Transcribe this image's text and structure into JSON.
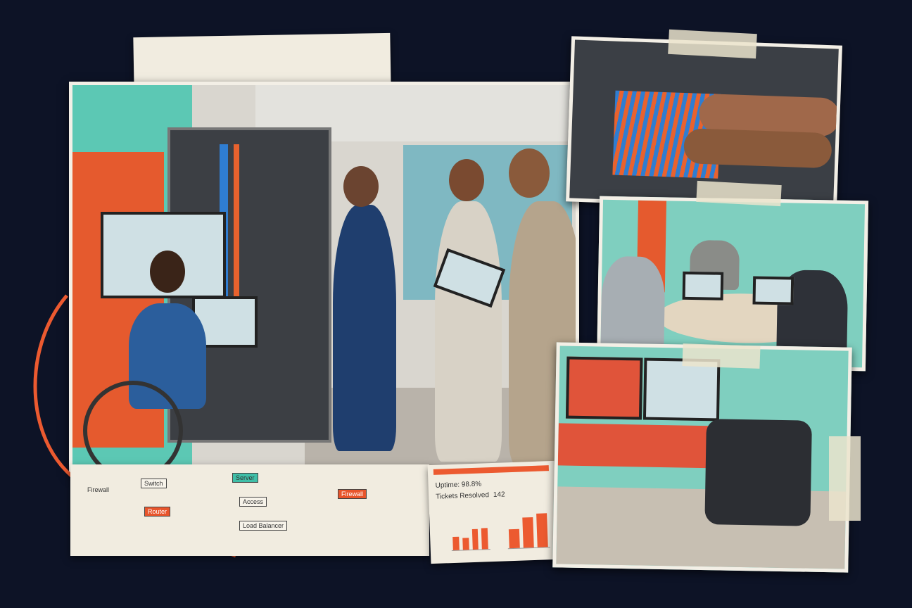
{
  "diagram": {
    "nodes": [
      "Firewall",
      "Switch",
      "Router",
      "Server",
      "Load Balancer",
      "Access",
      "Firewall"
    ]
  },
  "dashboard": {
    "heading": "Uptime: 98.8%",
    "tickets_label": "Tickets Resolved",
    "tickets_value": "142",
    "left_chart": {
      "values": [
        40,
        35,
        60,
        62
      ]
    },
    "right_chart": {
      "values": [
        50,
        80,
        88
      ]
    }
  },
  "colors": {
    "background": "#0d1326",
    "accent": "#ec5a30",
    "teal": "#5cc8b4",
    "paper": "#f1ece0"
  }
}
